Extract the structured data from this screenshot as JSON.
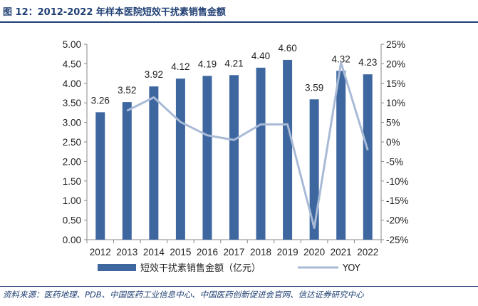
{
  "figure": {
    "title": "图 12：2012-2022 年样本医院短效干扰素销售金额",
    "source": "资料来源：医药地理、PDB、中国医药工业信息中心、中国医药创新促进会官网、信达证券研究中心"
  },
  "colors": {
    "bar": "#3e67a0",
    "line": "#a8bad6",
    "axis": "#888888",
    "accent": "#1f3f73"
  },
  "chart_data": {
    "type": "bar",
    "categories": [
      "2012",
      "2013",
      "2014",
      "2015",
      "2016",
      "2017",
      "2018",
      "2019",
      "2020",
      "2021",
      "2022"
    ],
    "series": [
      {
        "name": "短效干扰素销售金额（亿元）",
        "type": "bar",
        "axis": "left",
        "values": [
          3.26,
          3.52,
          3.92,
          4.12,
          4.19,
          4.21,
          4.4,
          4.6,
          3.59,
          4.32,
          4.23
        ],
        "labels": [
          "3.26",
          "3.52",
          "3.92",
          "4.12",
          "4.19",
          "4.21",
          "4.40",
          "4.60",
          "3.59",
          "4.32",
          "4.23"
        ]
      },
      {
        "name": "YOY",
        "type": "line",
        "axis": "right",
        "values": [
          null,
          8.0,
          11.4,
          5.1,
          1.7,
          0.5,
          4.5,
          4.5,
          -22.0,
          20.3,
          -2.1
        ]
      }
    ],
    "yleft": {
      "lim": [
        0,
        5
      ],
      "ticks": [
        "0.00",
        "0.50",
        "1.00",
        "1.50",
        "2.00",
        "2.50",
        "3.00",
        "3.50",
        "4.00",
        "4.50",
        "5.00"
      ]
    },
    "yright": {
      "lim": [
        -25,
        25
      ],
      "ticks": [
        "-25%",
        "-20%",
        "-15%",
        "-10%",
        "-5%",
        "0%",
        "5%",
        "10%",
        "15%",
        "20%",
        "25%"
      ]
    },
    "grid": false,
    "legend": "bottom"
  }
}
